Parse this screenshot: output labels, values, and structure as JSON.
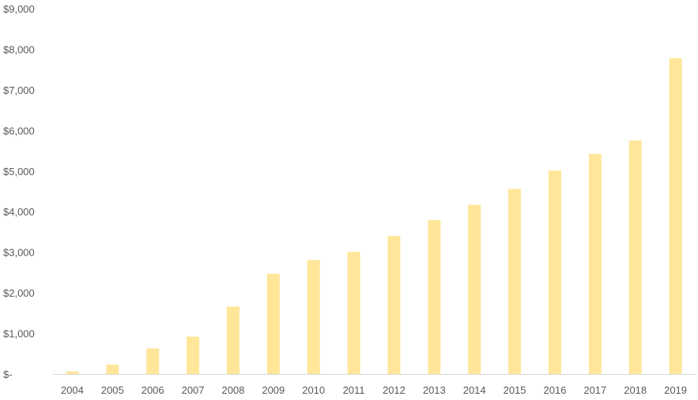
{
  "chart_data": {
    "type": "bar",
    "title": "",
    "xlabel": "",
    "ylabel": "",
    "categories": [
      "2004",
      "2005",
      "2006",
      "2007",
      "2008",
      "2009",
      "2010",
      "2011",
      "2012",
      "2013",
      "2014",
      "2015",
      "2016",
      "2017",
      "2018",
      "2019"
    ],
    "values": [
      60,
      230,
      630,
      920,
      1660,
      2470,
      2810,
      3010,
      3400,
      3790,
      4170,
      4560,
      5010,
      5420,
      5750,
      7780
    ],
    "ylim": [
      0,
      9000
    ],
    "yticks": [
      0,
      1000,
      2000,
      3000,
      4000,
      5000,
      6000,
      7000,
      8000,
      9000
    ],
    "ytick_labels": [
      "$-",
      "$1,000",
      "$2,000",
      "$3,000",
      "$4,000",
      "$5,000",
      "$6,000",
      "$7,000",
      "$8,000",
      "$9,000"
    ],
    "grid": false,
    "legend": "none",
    "colors": {
      "bar": "#ffe699",
      "axis": "#d9d9d9",
      "text": "#595959"
    }
  }
}
